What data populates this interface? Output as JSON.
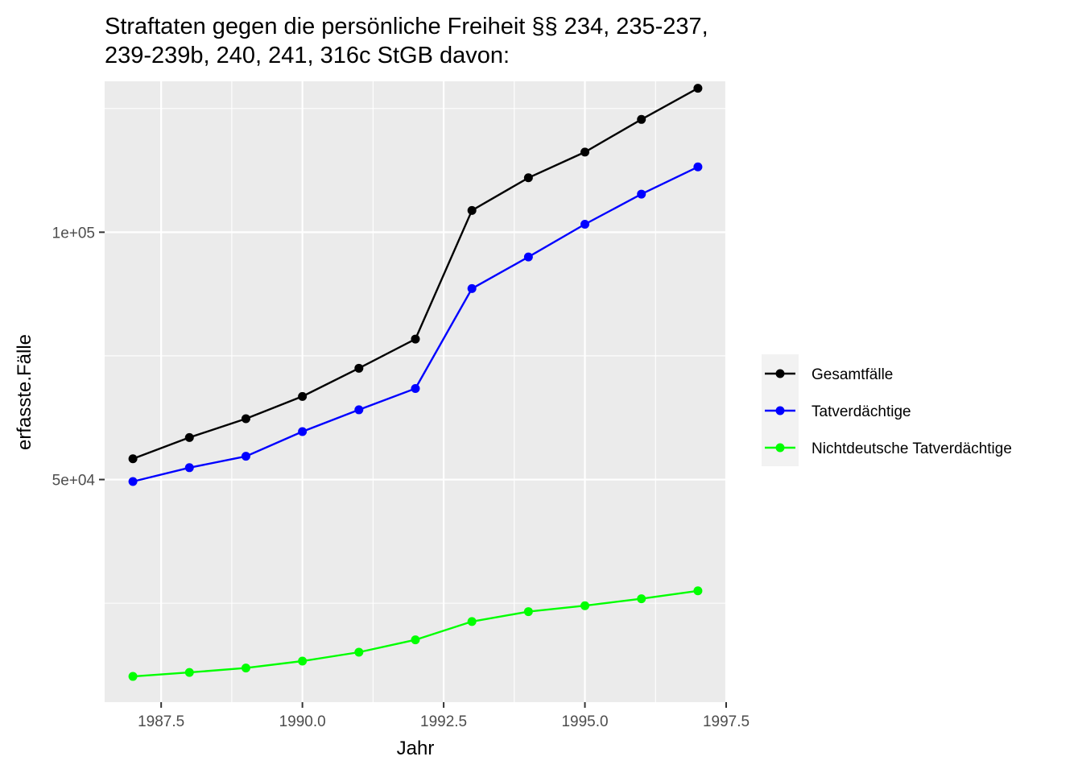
{
  "chart_data": {
    "type": "line",
    "title_lines": [
      "Straftaten gegen die persönliche Freiheit §§ 234, 235-237,",
      "239-239b, 240, 241, 316c StGB davon:"
    ],
    "xlabel": "Jahr",
    "ylabel": "erfasste.Fälle",
    "xlim": [
      1986.5,
      1997.5
    ],
    "ylim": [
      5000,
      130500
    ],
    "x_ticks": [
      1987.5,
      1990.0,
      1992.5,
      1995.0,
      1997.5
    ],
    "x_tick_labels": [
      "1987.5",
      "1990.0",
      "1992.5",
      "1995.0",
      "1997.5"
    ],
    "y_ticks": [
      50000,
      100000
    ],
    "y_tick_labels": [
      "5e+04",
      "1e+05"
    ],
    "grid": true,
    "legend_position": "right",
    "x": [
      1987,
      1988,
      1989,
      1990,
      1991,
      1992,
      1993,
      1994,
      1995,
      1996,
      1997
    ],
    "series": [
      {
        "name": "Gesamtfälle",
        "color": "#000000",
        "values": [
          54200,
          58500,
          62300,
          66800,
          72500,
          78400,
          104400,
          111000,
          116200,
          122800,
          129100
        ]
      },
      {
        "name": "Tatverdächtige",
        "color": "#0000ff",
        "values": [
          49600,
          52400,
          54700,
          59700,
          64100,
          68400,
          88600,
          95000,
          101600,
          107700,
          113200
        ]
      },
      {
        "name": "Nichtdeutsche Tatverdächtige",
        "color": "#00ff00",
        "values": [
          10200,
          11000,
          11900,
          13300,
          15100,
          17600,
          21300,
          23300,
          24500,
          25900,
          27500
        ]
      }
    ]
  }
}
